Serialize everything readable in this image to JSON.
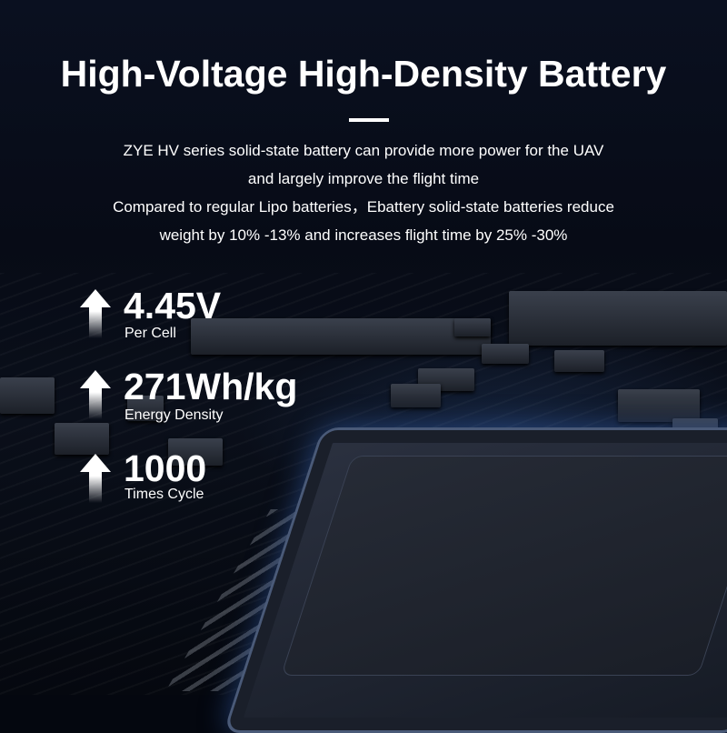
{
  "title": "High-Voltage High-Density Battery",
  "description": [
    "ZYE HV series solid-state battery can provide more power for the UAV",
    "and largely improve the flight time",
    "Compared to regular Lipo batteries，Ebattery solid-state batteries reduce",
    "weight by 10% -13% and increases flight time by 25% -30%"
  ],
  "stats": [
    {
      "value": "4.45V",
      "label": "Per Cell",
      "icon": "arrow-up-icon"
    },
    {
      "value": "271Wh/kg",
      "label": "Energy Density",
      "icon": "arrow-up-icon"
    },
    {
      "value": "1000",
      "label": "Times Cycle",
      "icon": "arrow-up-icon"
    }
  ]
}
